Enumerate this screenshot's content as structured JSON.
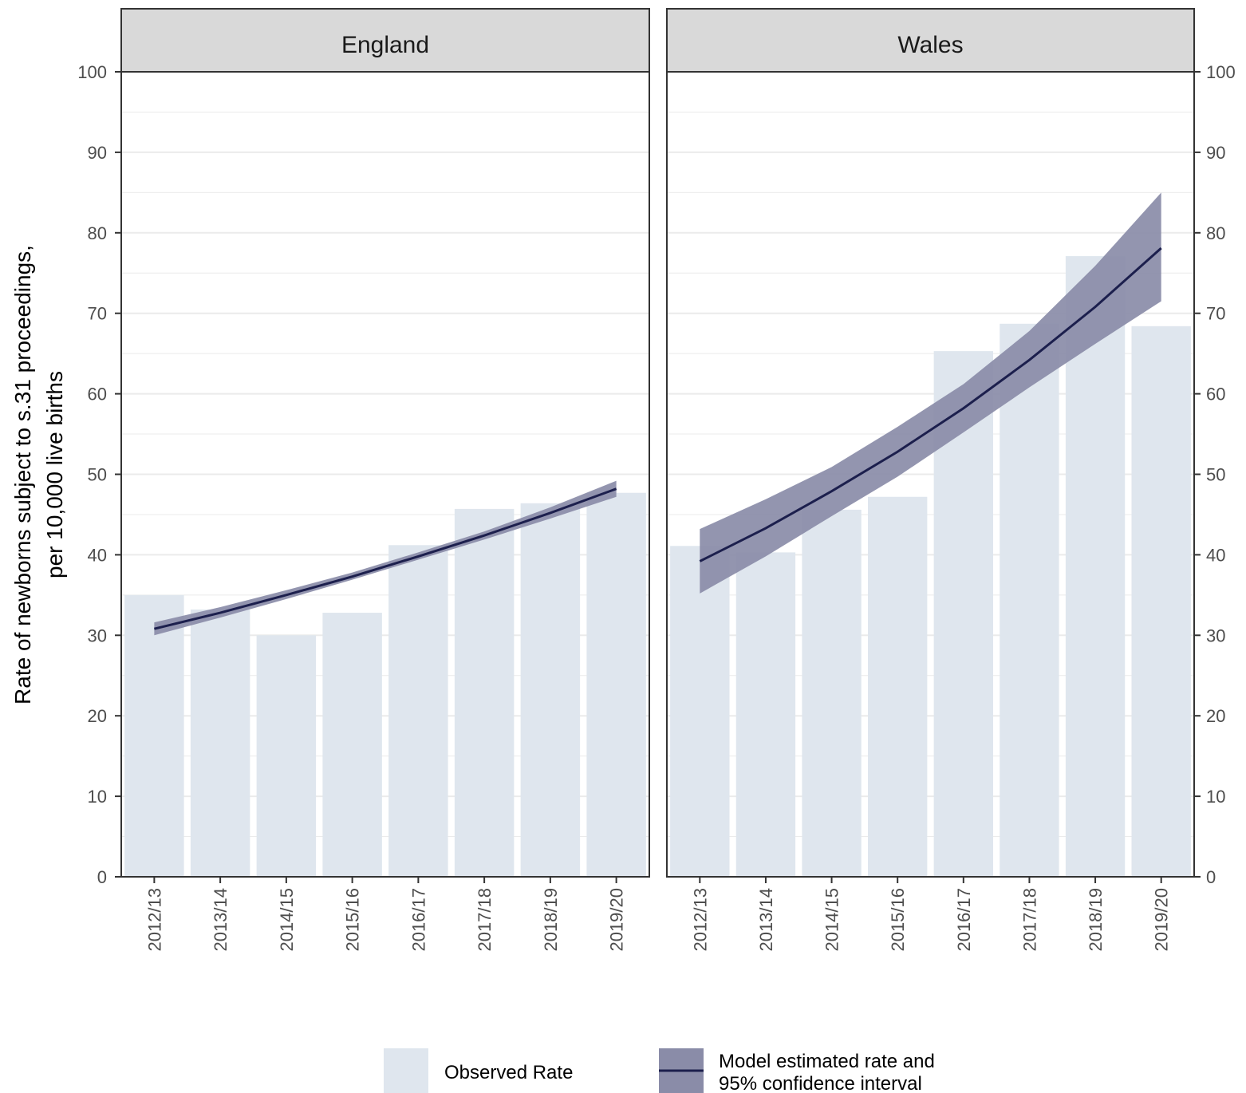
{
  "chart_data": {
    "type": "bar",
    "ylabel_lines": [
      "Rate of newborns subject to s.31 proceedings,",
      "per 10,000 live births"
    ],
    "xlabel": "",
    "ylim": [
      0,
      100
    ],
    "yticks": [
      0,
      10,
      20,
      30,
      40,
      50,
      60,
      70,
      80,
      90,
      100
    ],
    "categories": [
      "2012/13",
      "2013/14",
      "2014/15",
      "2015/16",
      "2016/17",
      "2017/18",
      "2018/19",
      "2019/20"
    ],
    "grid": true,
    "legend_position": "bottom",
    "legend": {
      "observed": "Observed Rate",
      "model_line1": "Model estimated rate and",
      "model_line2": "95% confidence interval"
    },
    "colors": {
      "bar": "#dfe6ee",
      "band": "#8a8ca8",
      "line": "#1c1f4d",
      "strip": "#d9d9d9",
      "grid": "#ebebeb"
    },
    "panels": [
      {
        "name": "England",
        "observed": [
          35.0,
          33.2,
          30.0,
          32.8,
          41.2,
          45.7,
          46.4,
          47.7
        ],
        "model": [
          30.8,
          32.8,
          35.0,
          37.3,
          39.8,
          42.4,
          45.2,
          48.2
        ],
        "lower": [
          30.0,
          32.2,
          34.5,
          36.9,
          39.4,
          41.9,
          44.5,
          47.2
        ],
        "upper": [
          31.6,
          33.5,
          35.6,
          37.8,
          40.3,
          42.9,
          45.9,
          49.2
        ]
      },
      {
        "name": "Wales",
        "observed": [
          41.1,
          40.3,
          45.6,
          47.2,
          65.3,
          68.7,
          77.1,
          68.4
        ],
        "model": [
          39.2,
          43.3,
          47.9,
          52.8,
          58.2,
          64.2,
          70.8,
          78.1
        ],
        "lower": [
          35.2,
          39.8,
          44.8,
          49.7,
          55.2,
          60.8,
          66.2,
          71.5
        ],
        "upper": [
          43.2,
          46.9,
          50.9,
          55.9,
          61.2,
          67.8,
          75.9,
          85.0
        ]
      }
    ]
  }
}
